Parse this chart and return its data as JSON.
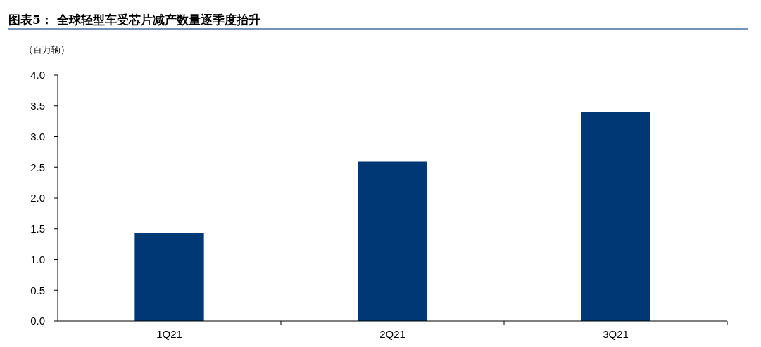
{
  "chart_data": {
    "type": "bar",
    "title": "图表5：  全球轻型车受芯片减产数量逐季度抬升",
    "ylabel": "（百万辆）",
    "categories": [
      "1Q21",
      "2Q21",
      "3Q21"
    ],
    "values": [
      1.44,
      2.6,
      3.4
    ],
    "color": "#003876",
    "ylim": [
      0,
      4
    ],
    "yticks": [
      {
        "value": 0,
        "label": "0.0"
      },
      {
        "value": 0.5,
        "label": "0.5"
      },
      {
        "value": 1,
        "label": "1.0"
      },
      {
        "value": 1.5,
        "label": "1.5"
      },
      {
        "value": 2,
        "label": "2.0"
      },
      {
        "value": 2.5,
        "label": "2.5"
      },
      {
        "value": 3,
        "label": "3.0"
      },
      {
        "value": 3.5,
        "label": "3.5"
      },
      {
        "value": 4,
        "label": "4.0"
      }
    ],
    "grid": false
  }
}
